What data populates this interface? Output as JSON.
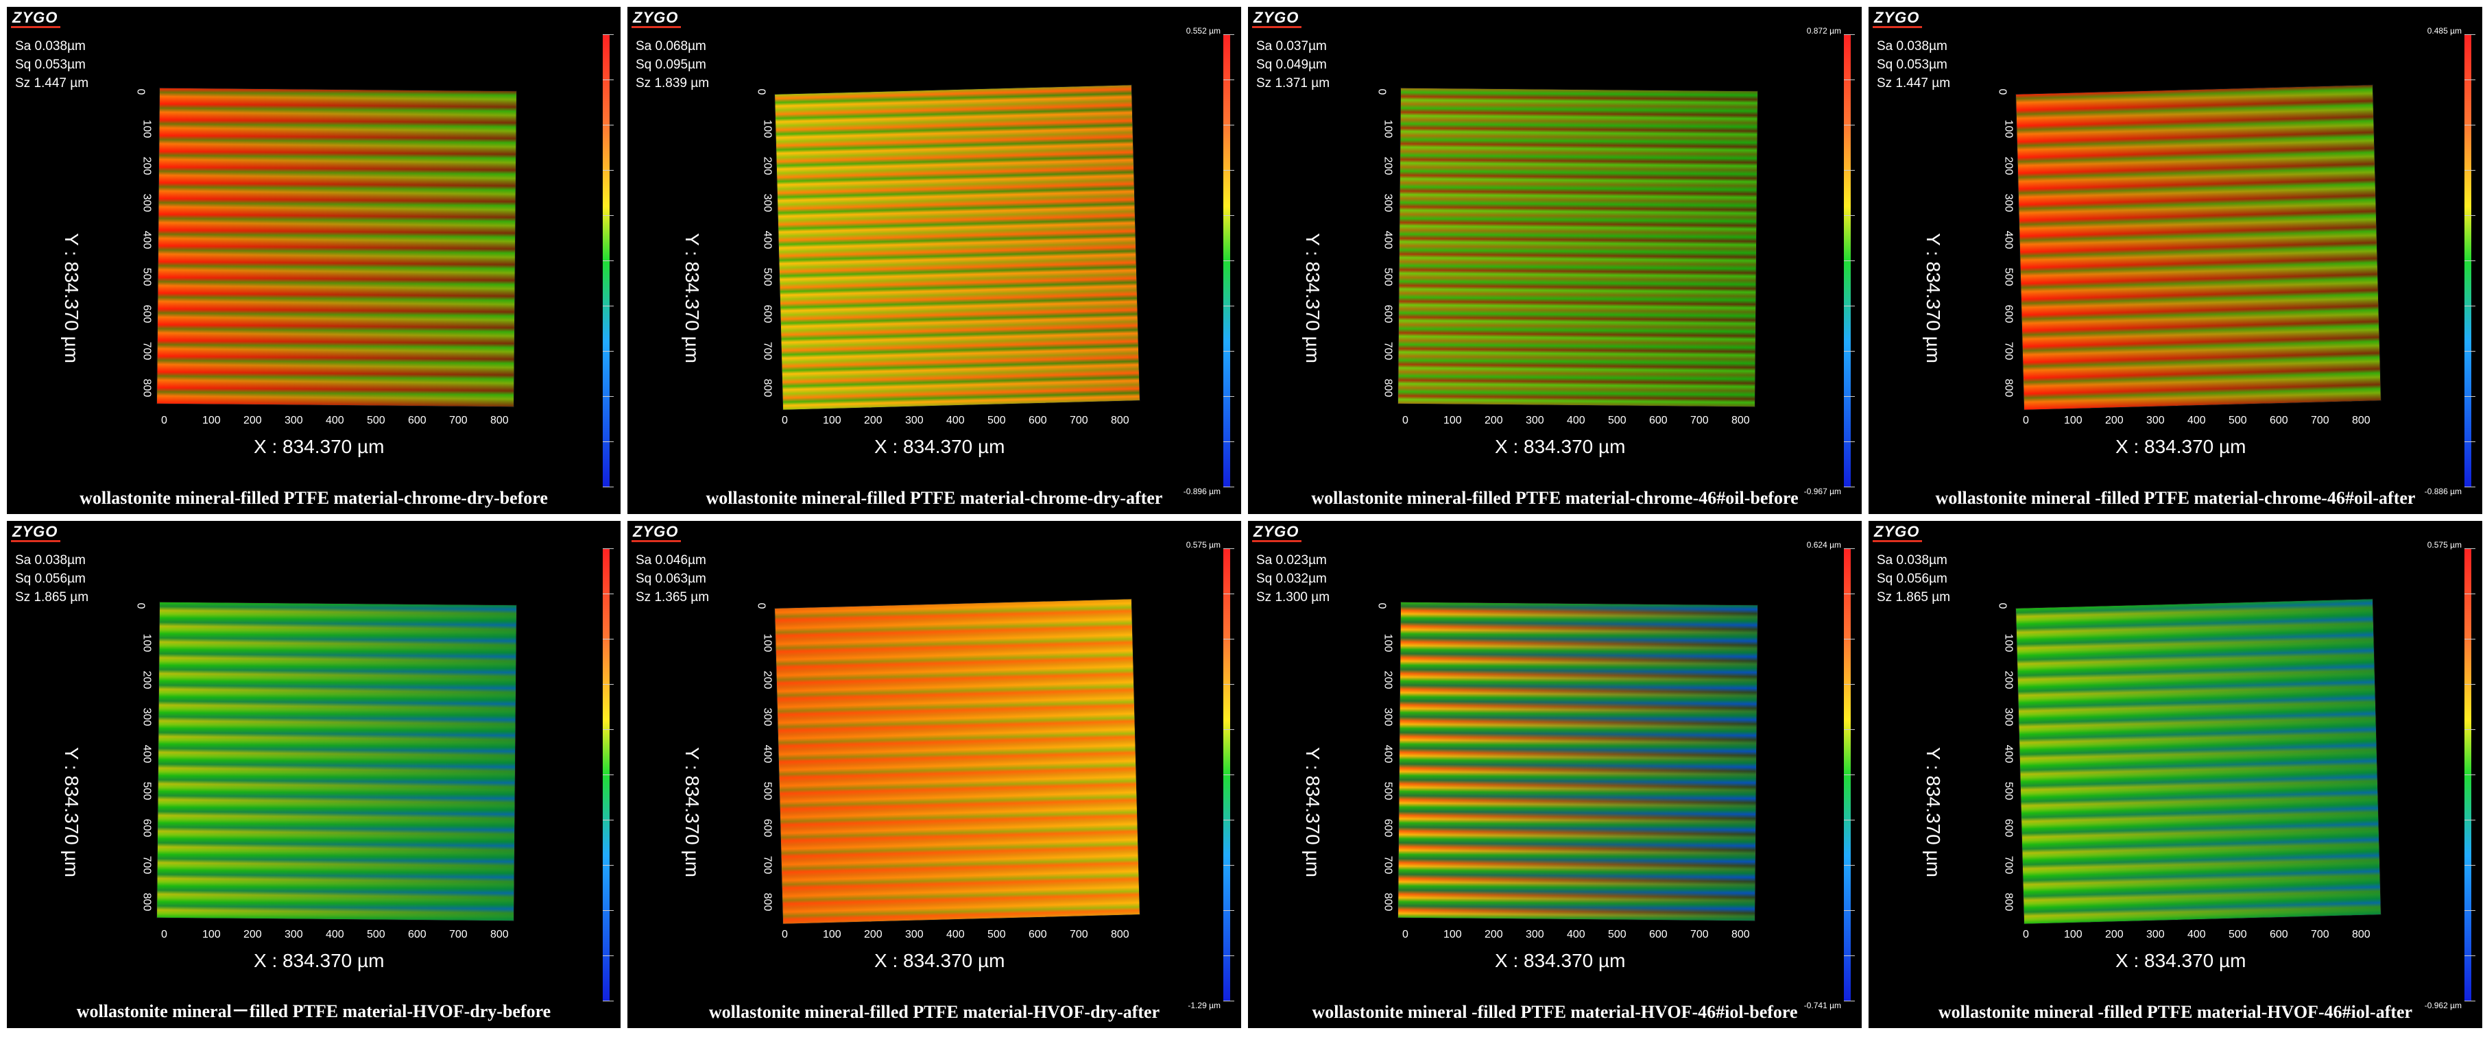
{
  "logo_text": "ZYGO",
  "x_axis_label": "X : 834.370 µm",
  "y_axis_label": "Y : 834.370 µm",
  "tick_labels": [
    "0",
    "100",
    "200",
    "300",
    "400",
    "500",
    "600",
    "700",
    "800"
  ],
  "panels": [
    {
      "stats": [
        "Sa 0.038µm",
        "Sq 0.053µm",
        "Sz 1.447 µm"
      ],
      "caption": "wollastonite mineral-filled PTFE material-chrome-dry-before",
      "scale_top": "",
      "scale_bottom": "",
      "palette": [
        "#ff3a22",
        "#ff8a2a",
        "#ffd32a",
        "#77d133"
      ]
    },
    {
      "stats": [
        "Sa 0.068µm",
        "Sq 0.095µm",
        "Sz 1.839 µm"
      ],
      "caption": "wollastonite mineral-filled PTFE material-chrome-dry-after",
      "scale_top": "0.552 µm",
      "scale_bottom": "-0.896 µm",
      "palette": [
        "#a6e23a",
        "#ffdd33",
        "#4fcf2e",
        "#ff9933"
      ]
    },
    {
      "stats": [
        "Sa 0.037µm",
        "Sq 0.049µm",
        "Sz 1.371 µm"
      ],
      "caption": "wollastonite mineral-filled PTFE material-chrome-46#oil-before",
      "scale_top": "0.872 µm",
      "scale_bottom": "-0.967 µm",
      "palette": [
        "#ff8a2a",
        "#a9e23a",
        "#ff4422",
        "#57cc39"
      ]
    },
    {
      "stats": [
        "Sa 0.038µm",
        "Sq 0.053µm",
        "Sz 1.447 µm"
      ],
      "caption": "wollastonite mineral -filled PTFE material-chrome-46#oil-after",
      "scale_top": "0.485 µm",
      "scale_bottom": "-0.886 µm",
      "palette": [
        "#ff3a22",
        "#ff8a2a",
        "#ffd32a",
        "#77d133"
      ]
    },
    {
      "stats": [
        "Sa 0.038µm",
        "Sq 0.056µm",
        "Sz 1.865 µm"
      ],
      "caption": "wollastonite mineral－filled PTFE material-HVOF-dry-before",
      "scale_top": "",
      "scale_bottom": "",
      "palette": [
        "#2ad14d",
        "#b3e335",
        "#ffd732",
        "#2ba4c9"
      ]
    },
    {
      "stats": [
        "Sa 0.046µm",
        "Sq 0.063µm",
        "Sz 1.365 µm"
      ],
      "caption": "wollastonite mineral-filled PTFE material-HVOF-dry-after",
      "scale_top": "0.575 µm",
      "scale_bottom": "-1.29 µm",
      "palette": [
        "#e8b834",
        "#ff8a2a",
        "#a8dd40",
        "#ffd732"
      ]
    },
    {
      "stats": [
        "Sa 0.023µm",
        "Sq 0.032µm",
        "Sz 1.300 µm"
      ],
      "caption": "wollastonite mineral -filled PTFE material-HVOF-46#iol-before",
      "scale_top": "0.624 µm",
      "scale_bottom": "-0.741 µm",
      "palette": [
        "#2ad14d",
        "#ffd732",
        "#ff7a2a",
        "#2a8fd9"
      ]
    },
    {
      "stats": [
        "Sa 0.038µm",
        "Sq 0.056µm",
        "Sz 1.865 µm"
      ],
      "caption": "wollastonite mineral -filled PTFE material-HVOF-46#iol-after",
      "scale_top": "0.575 µm",
      "scale_bottom": "-0.962 µm",
      "palette": [
        "#2ad14d",
        "#b3e335",
        "#ffd732",
        "#2ba4c9"
      ]
    }
  ]
}
